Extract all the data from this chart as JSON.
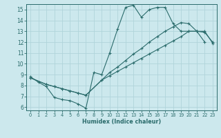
{
  "xlabel": "Humidex (Indice chaleur)",
  "background_color": "#cce8ed",
  "grid_color": "#b0d4da",
  "line_color": "#2a6b6b",
  "xlim": [
    -0.5,
    23.5
  ],
  "ylim": [
    5.7,
    15.5
  ],
  "xticks": [
    0,
    1,
    2,
    3,
    4,
    5,
    6,
    7,
    8,
    9,
    10,
    11,
    12,
    13,
    14,
    15,
    16,
    17,
    18,
    19,
    20,
    21,
    22,
    23
  ],
  "yticks": [
    6,
    7,
    8,
    9,
    10,
    11,
    12,
    13,
    14,
    15
  ],
  "line1_x": [
    0,
    1,
    2,
    3,
    4,
    5,
    6,
    7,
    8,
    9,
    10,
    11,
    12,
    13,
    14,
    15,
    16,
    17,
    18,
    19,
    20,
    21,
    22
  ],
  "line1_y": [
    8.8,
    8.3,
    7.9,
    6.9,
    6.7,
    6.6,
    6.3,
    5.9,
    9.2,
    9.0,
    11.0,
    13.2,
    15.2,
    15.4,
    14.3,
    15.0,
    15.2,
    15.2,
    13.7,
    13.0,
    13.0,
    13.0,
    12.0
  ],
  "line2_x": [
    0,
    2,
    3,
    4,
    5,
    6,
    7,
    9,
    10,
    11,
    12,
    13,
    14,
    15,
    16,
    17,
    18,
    19,
    20,
    21,
    22,
    23
  ],
  "line2_y": [
    8.7,
    8.1,
    7.9,
    7.7,
    7.5,
    7.3,
    7.1,
    8.5,
    8.9,
    9.3,
    9.7,
    10.1,
    10.5,
    10.9,
    11.3,
    11.7,
    12.1,
    12.5,
    13.0,
    13.0,
    12.9,
    12.0
  ],
  "line3_x": [
    0,
    2,
    3,
    4,
    5,
    6,
    7,
    9,
    10,
    11,
    12,
    13,
    14,
    15,
    16,
    17,
    18,
    19,
    20,
    21,
    22,
    23
  ],
  "line3_y": [
    8.7,
    8.1,
    7.9,
    7.7,
    7.5,
    7.3,
    7.1,
    8.5,
    9.2,
    9.7,
    10.3,
    10.9,
    11.4,
    12.0,
    12.5,
    13.0,
    13.4,
    13.8,
    13.7,
    13.0,
    13.0,
    11.9
  ]
}
